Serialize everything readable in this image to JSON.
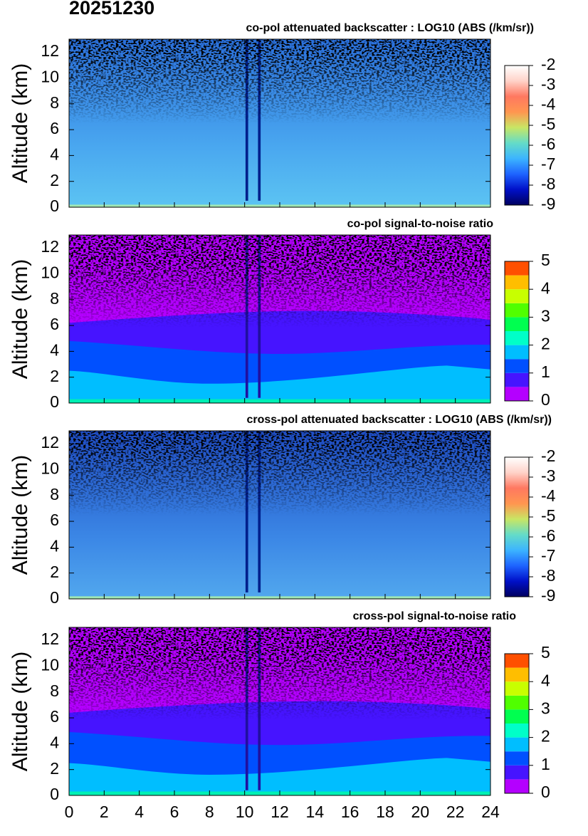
{
  "title": "20251230",
  "chart_data": [
    {
      "type": "heatmap",
      "title": "co-pol attenuated backscatter : LOG10 (ABS (/km/sr))",
      "ylabel": "Altitude (km)",
      "xlim": [
        0,
        24
      ],
      "xticks": [
        0,
        2,
        4,
        6,
        8,
        10,
        12,
        14,
        16,
        18,
        20,
        22,
        24
      ],
      "ylim": [
        0,
        13
      ],
      "yticks": [
        0,
        2,
        4,
        6,
        8,
        10,
        12
      ],
      "colorbar": {
        "type": "continuous",
        "lim": [
          -9,
          -2
        ],
        "ticks": [
          -9,
          -8,
          -7,
          -6,
          -5,
          -4,
          -3,
          -2
        ],
        "colors": [
          "#000060",
          "#0010c8",
          "#1e64ff",
          "#3cb4ff",
          "#64dcc8",
          "#c8e664",
          "#ff9650",
          "#ff7860",
          "#ffd2c8",
          "#ffffff"
        ]
      }
    },
    {
      "type": "heatmap",
      "title": "co-pol signal-to-noise ratio",
      "ylabel": "Altitude (km)",
      "xlim": [
        0,
        24
      ],
      "xticks": [
        0,
        2,
        4,
        6,
        8,
        10,
        12,
        14,
        16,
        18,
        20,
        22,
        24
      ],
      "ylim": [
        0,
        13
      ],
      "yticks": [
        0,
        2,
        4,
        6,
        8,
        10,
        12
      ],
      "colorbar": {
        "type": "discrete",
        "lim": [
          0,
          5
        ],
        "ticks": [
          0,
          1,
          2,
          3,
          4,
          5
        ],
        "colors": [
          "#b400ff",
          "#4614ff",
          "#0050ff",
          "#00beff",
          "#00ffc8",
          "#00ff50",
          "#50ff00",
          "#c8ff00",
          "#ffbe00",
          "#ff5000"
        ]
      }
    },
    {
      "type": "heatmap",
      "title": "cross-pol attenuated backscatter : LOG10 (ABS (/km/sr))",
      "ylabel": "Altitude (km)",
      "xlim": [
        0,
        24
      ],
      "xticks": [
        0,
        2,
        4,
        6,
        8,
        10,
        12,
        14,
        16,
        18,
        20,
        22,
        24
      ],
      "ylim": [
        0,
        13
      ],
      "yticks": [
        0,
        2,
        4,
        6,
        8,
        10,
        12
      ],
      "colorbar": {
        "type": "continuous",
        "lim": [
          -9,
          -2
        ],
        "ticks": [
          -9,
          -8,
          -7,
          -6,
          -5,
          -4,
          -3,
          -2
        ],
        "colors": [
          "#000060",
          "#0010c8",
          "#1e64ff",
          "#3cb4ff",
          "#64dcc8",
          "#c8e664",
          "#ff9650",
          "#ff7860",
          "#ffd2c8",
          "#ffffff"
        ]
      }
    },
    {
      "type": "heatmap",
      "title": "cross-pol signal-to-noise ratio",
      "ylabel": "Altitude (km)",
      "xlim": [
        0,
        24
      ],
      "xticks": [
        0,
        2,
        4,
        6,
        8,
        10,
        12,
        14,
        16,
        18,
        20,
        22,
        24
      ],
      "ylim": [
        0,
        13
      ],
      "yticks": [
        0,
        2,
        4,
        6,
        8,
        10,
        12
      ],
      "colorbar": {
        "type": "discrete",
        "lim": [
          0,
          5
        ],
        "ticks": [
          0,
          1,
          2,
          3,
          4,
          5
        ],
        "colors": [
          "#b400ff",
          "#4614ff",
          "#0050ff",
          "#00beff",
          "#00ffc8",
          "#00ff50",
          "#50ff00",
          "#c8ff00",
          "#ffbe00",
          "#ff5000"
        ]
      }
    }
  ]
}
